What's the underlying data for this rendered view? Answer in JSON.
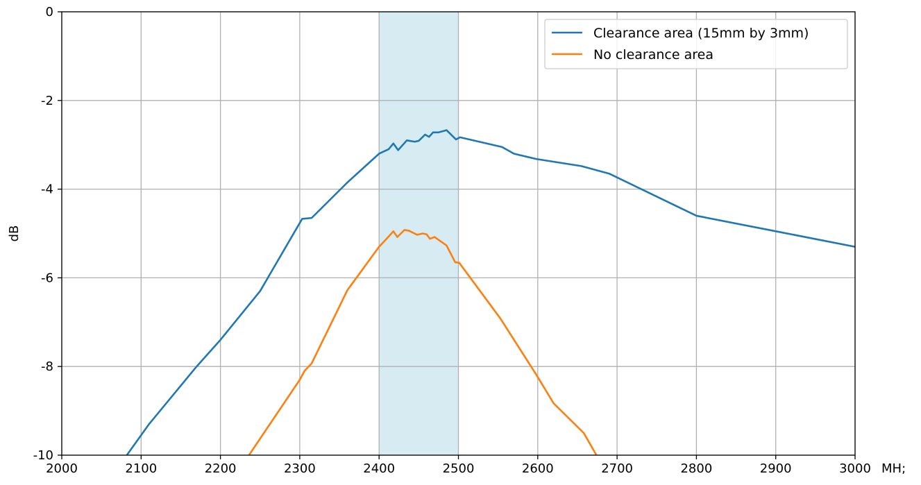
{
  "chart_data": {
    "type": "line",
    "title": "",
    "xlabel": "",
    "x_unit_label": "MH;",
    "ylabel": "dB",
    "xlim": [
      2000,
      3000
    ],
    "ylim": [
      -10,
      0
    ],
    "x_ticks": [
      2000,
      2100,
      2200,
      2300,
      2400,
      2500,
      2600,
      2700,
      2800,
      2900,
      3000
    ],
    "x_tick_labels": [
      "2000",
      "2100",
      "2200",
      "2300",
      "2400",
      "2500",
      "2600",
      "2700",
      "2800",
      "2900",
      "3000"
    ],
    "y_ticks": [
      0,
      -2,
      -4,
      -6,
      -8,
      -10
    ],
    "y_tick_labels": [
      "0",
      "-2",
      "-4",
      "-6",
      "-8",
      "-10"
    ],
    "grid": true,
    "legend_position": "top-right",
    "highlight_band": {
      "x_start": 2400,
      "x_end": 2500,
      "color": "#add8e6"
    },
    "series": [
      {
        "name": "Clearance area (15mm by 3mm)",
        "color": "#1f77b4",
        "points": [
          [
            2082,
            -10.0
          ],
          [
            2110,
            -9.3
          ],
          [
            2170,
            -8.0
          ],
          [
            2200,
            -7.4
          ],
          [
            2250,
            -6.3
          ],
          [
            2303,
            -4.67
          ],
          [
            2315,
            -4.65
          ],
          [
            2360,
            -3.85
          ],
          [
            2400,
            -3.2
          ],
          [
            2412,
            -3.1
          ],
          [
            2418,
            -2.97
          ],
          [
            2424,
            -3.12
          ],
          [
            2435,
            -2.9
          ],
          [
            2445,
            -2.93
          ],
          [
            2450,
            -2.91
          ],
          [
            2458,
            -2.77
          ],
          [
            2463,
            -2.82
          ],
          [
            2468,
            -2.72
          ],
          [
            2475,
            -2.72
          ],
          [
            2485,
            -2.67
          ],
          [
            2497,
            -2.88
          ],
          [
            2502,
            -2.83
          ],
          [
            2555,
            -3.05
          ],
          [
            2570,
            -3.2
          ],
          [
            2598,
            -3.32
          ],
          [
            2655,
            -3.48
          ],
          [
            2690,
            -3.65
          ],
          [
            2800,
            -4.6
          ],
          [
            2900,
            -4.95
          ],
          [
            3000,
            -5.3
          ]
        ]
      },
      {
        "name": "No clearance area",
        "color": "#ff7f0e",
        "points": [
          [
            2236,
            -10.0
          ],
          [
            2300,
            -8.3
          ],
          [
            2306,
            -8.1
          ],
          [
            2315,
            -7.93
          ],
          [
            2360,
            -6.28
          ],
          [
            2400,
            -5.3
          ],
          [
            2412,
            -5.07
          ],
          [
            2418,
            -4.95
          ],
          [
            2423,
            -5.08
          ],
          [
            2432,
            -4.92
          ],
          [
            2438,
            -4.94
          ],
          [
            2448,
            -5.03
          ],
          [
            2455,
            -5.0
          ],
          [
            2460,
            -5.02
          ],
          [
            2464,
            -5.12
          ],
          [
            2470,
            -5.08
          ],
          [
            2485,
            -5.27
          ],
          [
            2496,
            -5.65
          ],
          [
            2501,
            -5.66
          ],
          [
            2553,
            -6.92
          ],
          [
            2598,
            -8.18
          ],
          [
            2620,
            -8.83
          ],
          [
            2658,
            -9.5
          ],
          [
            2674,
            -10.0
          ]
        ]
      }
    ]
  }
}
